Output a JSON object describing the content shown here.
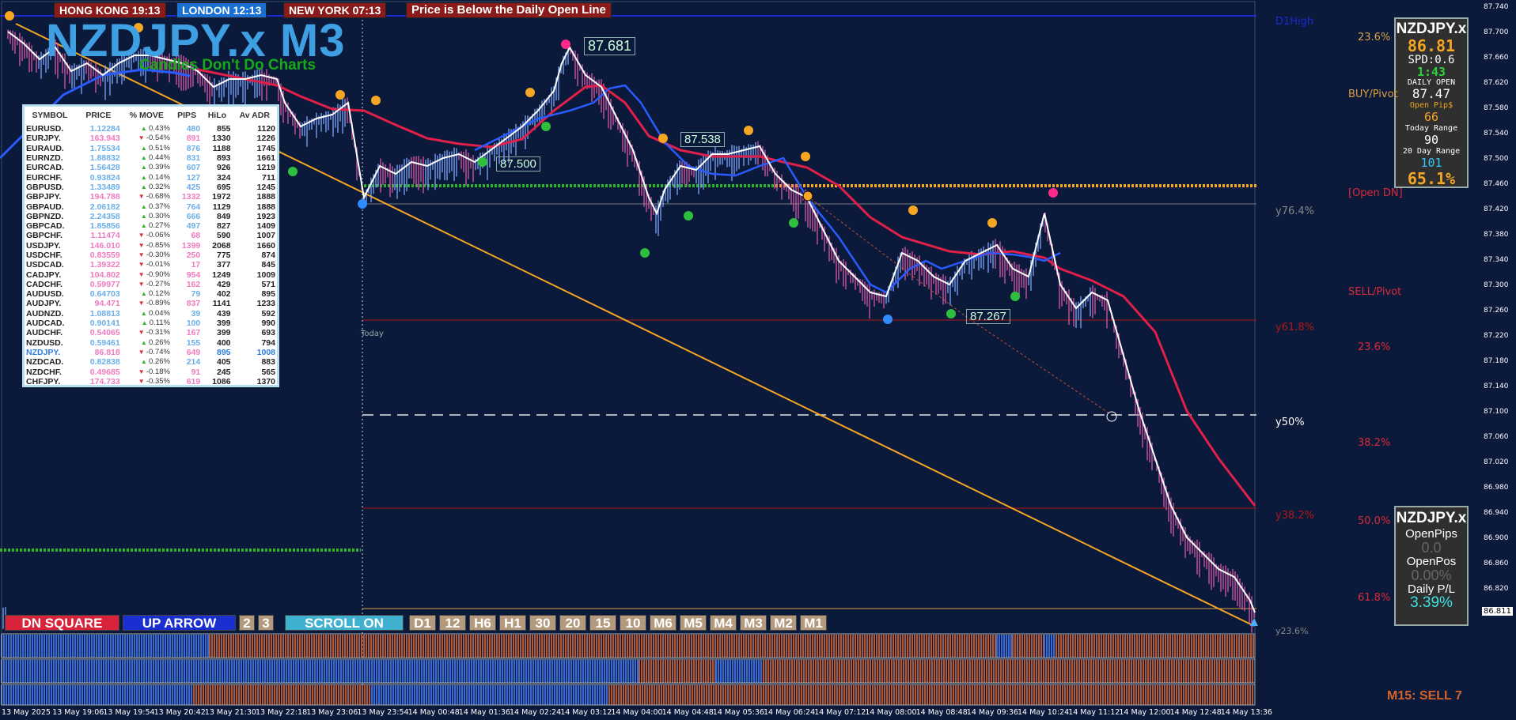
{
  "sessions": [
    {
      "label": "HONG KONG  19:13",
      "color": "#8b1b1b"
    },
    {
      "label": "LONDON  12:13",
      "color": "#1a6fd1"
    },
    {
      "label": "NEW YORK  07:13",
      "color": "#8b1b1b"
    }
  ],
  "alert": "Price is Below the Daily Open Line",
  "title": "NZDJPY.x  M3",
  "slogan": "Candles Don't Do Charts",
  "price_labels": {
    "p1": "87.681",
    "p2": "87.538",
    "p3": "87.500",
    "p4": "87.267"
  },
  "today_label": "Today",
  "table": {
    "headers": [
      "SYMBOL",
      "PRICE",
      "% MOVE",
      "PIPS",
      "HiLo",
      "Av ADR"
    ],
    "rows": [
      [
        "EURUSD.",
        "1.12284",
        "0.43%",
        "480",
        "855",
        "1120",
        "up"
      ],
      [
        "EURJPY.",
        "163.943",
        "-0.54%",
        "891",
        "1330",
        "1226",
        "dn"
      ],
      [
        "EURAUD.",
        "1.75534",
        "0.51%",
        "876",
        "1188",
        "1745",
        "up"
      ],
      [
        "EURNZD.",
        "1.88832",
        "0.44%",
        "831",
        "893",
        "1661",
        "up"
      ],
      [
        "EURCAD.",
        "1.56428",
        "0.39%",
        "607",
        "926",
        "1219",
        "up"
      ],
      [
        "EURCHF.",
        "0.93824",
        "0.14%",
        "127",
        "324",
        "711",
        "up"
      ],
      [
        "GBPUSD.",
        "1.33489",
        "0.32%",
        "425",
        "695",
        "1245",
        "up"
      ],
      [
        "GBPJPY.",
        "194.788",
        "-0.68%",
        "1332",
        "1972",
        "1888",
        "dn"
      ],
      [
        "GBPAUD.",
        "2.06182",
        "0.37%",
        "764",
        "1129",
        "1888",
        "up"
      ],
      [
        "GBPNZD.",
        "2.24358",
        "0.30%",
        "666",
        "849",
        "1923",
        "up"
      ],
      [
        "GBPCAD.",
        "1.85856",
        "0.27%",
        "497",
        "827",
        "1409",
        "up"
      ],
      [
        "GBPCHF.",
        "1.11474",
        "-0.06%",
        "68",
        "590",
        "1007",
        "dn"
      ],
      [
        "USDJPY.",
        "146.010",
        "-0.85%",
        "1399",
        "2068",
        "1660",
        "dn"
      ],
      [
        "USDCHF.",
        "0.83559",
        "-0.30%",
        "250",
        "775",
        "874",
        "dn"
      ],
      [
        "USDCAD.",
        "1.39322",
        "-0.01%",
        "17",
        "377",
        "845",
        "dn"
      ],
      [
        "CADJPY.",
        "104.802",
        "-0.90%",
        "954",
        "1249",
        "1009",
        "dn"
      ],
      [
        "CADCHF.",
        "0.59977",
        "-0.27%",
        "162",
        "429",
        "571",
        "dn"
      ],
      [
        "AUDUSD.",
        "0.64703",
        "0.12%",
        "79",
        "402",
        "895",
        "up"
      ],
      [
        "AUDJPY.",
        "94.471",
        "-0.89%",
        "837",
        "1141",
        "1233",
        "dn"
      ],
      [
        "AUDNZD.",
        "1.08813",
        "0.04%",
        "39",
        "439",
        "592",
        "up"
      ],
      [
        "AUDCAD.",
        "0.90141",
        "0.11%",
        "100",
        "399",
        "990",
        "up"
      ],
      [
        "AUDCHF.",
        "0.54065",
        "-0.31%",
        "167",
        "399",
        "693",
        "dn"
      ],
      [
        "NZDUSD.",
        "0.59461",
        "0.26%",
        "155",
        "400",
        "794",
        "up"
      ],
      [
        "NZDJPY.",
        "86.818",
        "-0.74%",
        "649",
        "895",
        "1008",
        "dn"
      ],
      [
        "NZDCAD.",
        "0.82838",
        "0.26%",
        "214",
        "405",
        "883",
        "up"
      ],
      [
        "NZDCHF.",
        "0.49685",
        "-0.18%",
        "91",
        "245",
        "565",
        "dn"
      ],
      [
        "CHFJPY.",
        "174.733",
        "-0.35%",
        "619",
        "1086",
        "1370",
        "dn"
      ]
    ]
  },
  "info_panel": {
    "symbol": "NZDJPY.x",
    "price": "86.81",
    "spread": "SPD:0.6",
    "timer": "1:43",
    "daily_open_label": "DAILY OPEN",
    "daily_open": "87.47",
    "open_pips_label": "Open Pip$",
    "open_pips": "66",
    "today_range_label": "Today Range",
    "today_range": "90",
    "day20_label": "20 Day Range",
    "day20": "101",
    "pct": "65.1%"
  },
  "pos_panel": {
    "symbol": "NZDJPY.x",
    "open_pips_label": "OpenPips",
    "open_pips": "0.0",
    "open_pos_label": "OpenPos",
    "open_pos": "0.00%",
    "daily_pl_label": "Daily P/L",
    "daily_pl": "3.39%"
  },
  "toolbar": {
    "dn_square": "DN SQUARE",
    "up_arrow": "UP ARROW",
    "n2": "2",
    "n3": "3",
    "scroll": "SCROLL ON",
    "timeframes": [
      "D1",
      "12",
      "H6",
      "H1",
      "30",
      "20",
      "15",
      "10",
      "M6",
      "M5",
      "M4",
      "M3",
      "M2",
      "M1"
    ]
  },
  "fib_right": {
    "d1high": "D1High",
    "f236a": "23.6%",
    "buy_pivot": "BUY/Pivot",
    "open_dn": "[Open DN]",
    "y764": "y76.4%",
    "sell_pivot": "SELL/Pivot",
    "y618": "y61.8%",
    "f236b": "23.6%",
    "y50": "y50%",
    "f382": "38.2%",
    "y382": "y38.2%",
    "f50": "50.0%",
    "f618": "61.8%",
    "y236": "y23.6%"
  },
  "signal": "M15: SELL 7",
  "current_price_tag": "86.811",
  "y_axis": [
    "87.740",
    "87.700",
    "87.660",
    "87.620",
    "87.580",
    "87.540",
    "87.500",
    "87.460",
    "87.420",
    "87.380",
    "87.340",
    "87.300",
    "87.260",
    "87.220",
    "87.180",
    "87.140",
    "87.100",
    "87.060",
    "87.020",
    "86.980",
    "86.940",
    "86.900",
    "86.860",
    "86.820"
  ],
  "x_axis": [
    "13 May 2025",
    "13 May 19:06",
    "13 May 19:54",
    "13 May 20:42",
    "13 May 21:30",
    "13 May 22:18",
    "13 May 23:06",
    "13 May 23:54",
    "14 May 00:48",
    "14 May 01:36",
    "14 May 02:24",
    "14 May 03:12",
    "14 May 04:00",
    "14 May 04:48",
    "14 May 05:36",
    "14 May 06:24",
    "14 May 07:12",
    "14 May 08:00",
    "14 May 08:48",
    "14 May 09:36",
    "14 May 10:24",
    "14 May 11:12",
    "14 May 12:00",
    "14 May 12:48",
    "14 May 13:36"
  ],
  "colors": {
    "bg": "#0b1a3a",
    "ma_red": "#e0204a",
    "ma_blue": "#2a5bff",
    "trend": "#f5a623",
    "bull": "#3a6cd8",
    "bear": "#b05a3a"
  }
}
